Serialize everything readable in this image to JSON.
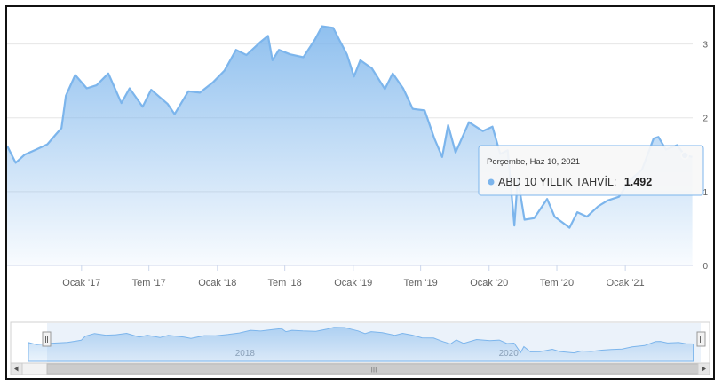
{
  "chart_data": {
    "type": "area",
    "series": [
      {
        "name": "ABD 10 YILLIK TAHVİL",
        "color": "#7cb5ec",
        "points": [
          [
            "2016-06-15",
            1.62
          ],
          [
            "2016-07-08",
            1.39
          ],
          [
            "2016-08-01",
            1.5
          ],
          [
            "2016-09-01",
            1.57
          ],
          [
            "2016-10-01",
            1.64
          ],
          [
            "2016-10-25",
            1.78
          ],
          [
            "2016-11-08",
            1.86
          ],
          [
            "2016-11-20",
            2.3
          ],
          [
            "2016-12-15",
            2.58
          ],
          [
            "2017-01-15",
            2.4
          ],
          [
            "2017-02-10",
            2.44
          ],
          [
            "2017-03-14",
            2.6
          ],
          [
            "2017-04-18",
            2.2
          ],
          [
            "2017-05-10",
            2.4
          ],
          [
            "2017-06-14",
            2.15
          ],
          [
            "2017-07-07",
            2.38
          ],
          [
            "2017-08-20",
            2.19
          ],
          [
            "2017-09-08",
            2.05
          ],
          [
            "2017-10-15",
            2.36
          ],
          [
            "2017-11-15",
            2.34
          ],
          [
            "2017-12-20",
            2.48
          ],
          [
            "2018-01-20",
            2.64
          ],
          [
            "2018-02-20",
            2.92
          ],
          [
            "2018-03-20",
            2.85
          ],
          [
            "2018-04-25",
            3.02
          ],
          [
            "2018-05-17",
            3.11
          ],
          [
            "2018-05-29",
            2.78
          ],
          [
            "2018-06-15",
            2.92
          ],
          [
            "2018-07-15",
            2.86
          ],
          [
            "2018-08-20",
            2.82
          ],
          [
            "2018-09-20",
            3.06
          ],
          [
            "2018-10-09",
            3.24
          ],
          [
            "2018-11-08",
            3.22
          ],
          [
            "2018-11-25",
            3.05
          ],
          [
            "2018-12-15",
            2.86
          ],
          [
            "2019-01-03",
            2.56
          ],
          [
            "2019-01-20",
            2.78
          ],
          [
            "2019-02-20",
            2.67
          ],
          [
            "2019-03-27",
            2.39
          ],
          [
            "2019-04-17",
            2.6
          ],
          [
            "2019-05-15",
            2.4
          ],
          [
            "2019-06-10",
            2.12
          ],
          [
            "2019-07-12",
            2.1
          ],
          [
            "2019-08-07",
            1.72
          ],
          [
            "2019-08-28",
            1.47
          ],
          [
            "2019-09-13",
            1.9
          ],
          [
            "2019-10-03",
            1.53
          ],
          [
            "2019-11-08",
            1.94
          ],
          [
            "2019-12-15",
            1.82
          ],
          [
            "2020-01-10",
            1.88
          ],
          [
            "2020-01-31",
            1.51
          ],
          [
            "2020-02-20",
            1.56
          ],
          [
            "2020-03-09",
            0.54
          ],
          [
            "2020-03-18",
            1.18
          ],
          [
            "2020-04-05",
            0.62
          ],
          [
            "2020-05-01",
            0.64
          ],
          [
            "2020-06-05",
            0.9
          ],
          [
            "2020-06-25",
            0.66
          ],
          [
            "2020-08-04",
            0.51
          ],
          [
            "2020-08-25",
            0.72
          ],
          [
            "2020-09-20",
            0.66
          ],
          [
            "2020-10-20",
            0.8
          ],
          [
            "2020-11-15",
            0.88
          ],
          [
            "2020-12-15",
            0.93
          ],
          [
            "2021-01-12",
            1.15
          ],
          [
            "2021-02-15",
            1.3
          ],
          [
            "2021-03-18",
            1.72
          ],
          [
            "2021-03-31",
            1.74
          ],
          [
            "2021-04-20",
            1.57
          ],
          [
            "2021-05-20",
            1.63
          ],
          [
            "2021-06-10",
            1.492
          ],
          [
            "2021-06-30",
            1.47
          ]
        ]
      }
    ],
    "x_ticks": [
      {
        "date": "2017-01-01",
        "label": "Ocak '17"
      },
      {
        "date": "2017-07-01",
        "label": "Tem '17"
      },
      {
        "date": "2018-01-01",
        "label": "Ocak '18"
      },
      {
        "date": "2018-07-01",
        "label": "Tem '18"
      },
      {
        "date": "2019-01-01",
        "label": "Ocak '19"
      },
      {
        "date": "2019-07-01",
        "label": "Tem '19"
      },
      {
        "date": "2020-01-01",
        "label": "Ocak '20"
      },
      {
        "date": "2020-07-01",
        "label": "Tem '20"
      },
      {
        "date": "2021-01-01",
        "label": "Ocak '21"
      }
    ],
    "y_ticks": [
      0,
      1,
      2,
      3
    ],
    "ylim": [
      0,
      3.5
    ],
    "xlim": [
      "2016-06-15",
      "2021-07-01"
    ],
    "grid": true,
    "legend": "none",
    "tooltip": {
      "date_label": "Perşembe, Haz 10, 2021",
      "series_label": "ABD 10 YILLIK TAHVİL:",
      "value_label": "1.492",
      "date": "2021-06-10"
    },
    "navigator": {
      "labels": [
        {
          "date": "2018-01-01",
          "label": "2018"
        },
        {
          "date": "2020-01-01",
          "label": "2020"
        }
      ],
      "scrollbar_grip": "III"
    }
  }
}
